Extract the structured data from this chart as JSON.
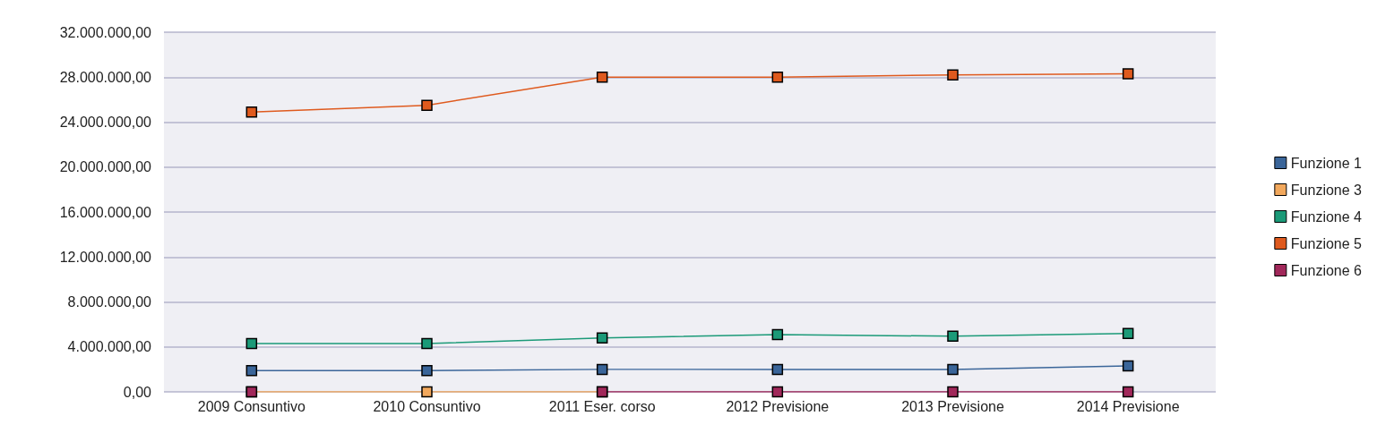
{
  "chart_data": {
    "type": "line",
    "categories": [
      "2009 Consuntivo",
      "2010 Consuntivo",
      "2011 Eser. corso",
      "2012 Previsione",
      "2013 Previsione",
      "2014 Previsione"
    ],
    "series": [
      {
        "name": "Funzione 1",
        "color": "#3a6599",
        "values": [
          1900000,
          1900000,
          2000000,
          2000000,
          2000000,
          2300000
        ]
      },
      {
        "name": "Funzione 3",
        "color": "#f2a85c",
        "values": [
          0,
          0,
          0,
          null,
          null,
          null
        ]
      },
      {
        "name": "Funzione 4",
        "color": "#1b9a78",
        "values": [
          4300000,
          4300000,
          4800000,
          5100000,
          4950000,
          5200000
        ]
      },
      {
        "name": "Funzione 5",
        "color": "#df5a1e",
        "values": [
          24900000,
          25500000,
          28000000,
          28000000,
          28200000,
          28300000
        ]
      },
      {
        "name": "Funzione 6",
        "color": "#a1285a",
        "values": [
          0,
          null,
          0,
          0,
          0,
          0
        ]
      }
    ],
    "ylim": [
      0,
      32000000
    ],
    "yticks": [
      {
        "value": 0,
        "label": "0,00"
      },
      {
        "value": 4000000,
        "label": "4.000.000,00"
      },
      {
        "value": 8000000,
        "label": "8.000.000,00"
      },
      {
        "value": 12000000,
        "label": "12.000.000,00"
      },
      {
        "value": 16000000,
        "label": "16.000.000,00"
      },
      {
        "value": 20000000,
        "label": "20.000.000,00"
      },
      {
        "value": 24000000,
        "label": "24.000.000,00"
      },
      {
        "value": 28000000,
        "label": "28.000.000,00"
      },
      {
        "value": 32000000,
        "label": "32.000.000,00"
      }
    ],
    "grid": "y",
    "legend": "right",
    "marker": "square",
    "line_style": "solid"
  }
}
